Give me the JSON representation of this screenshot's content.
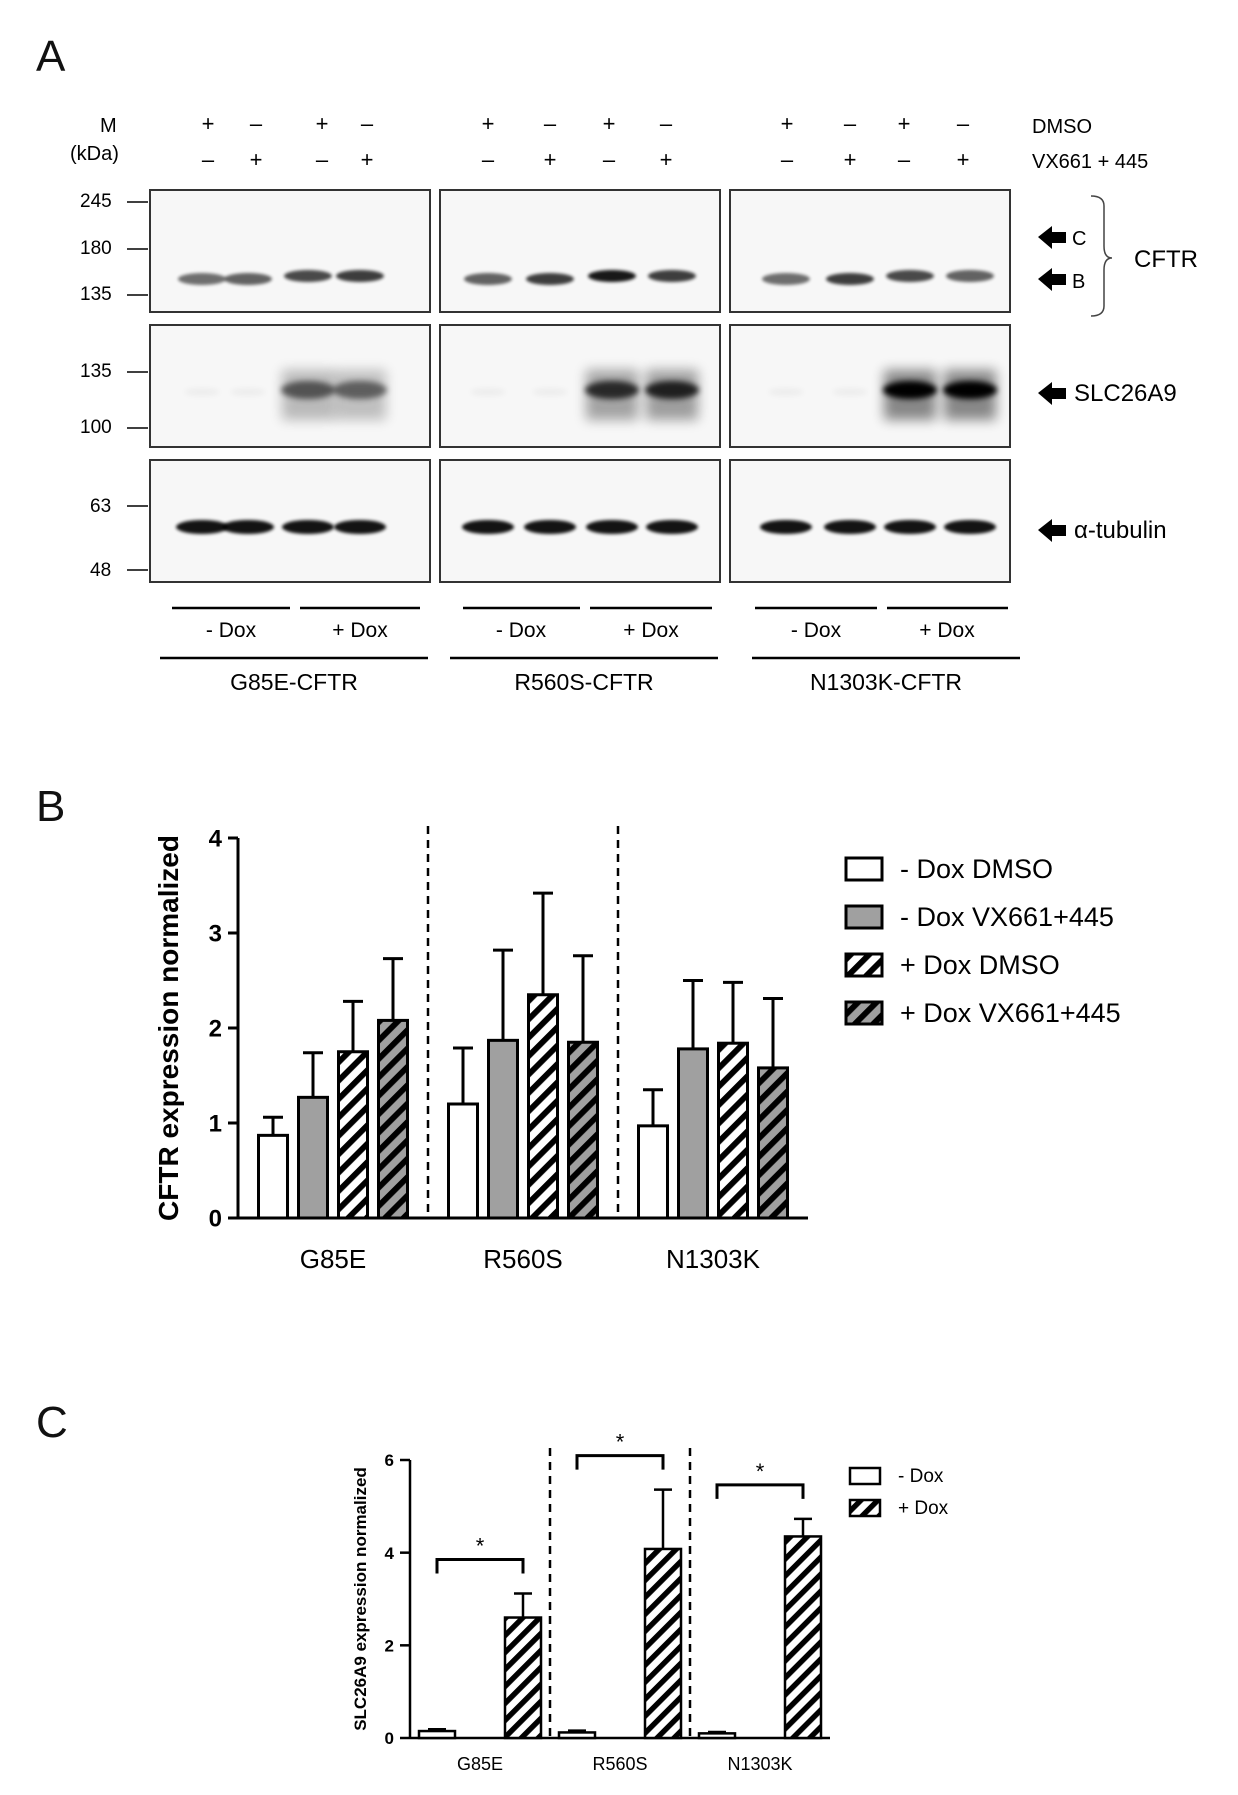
{
  "panels": {
    "a": "A",
    "b": "B",
    "c": "C"
  },
  "blot": {
    "marker_label": "M",
    "kda_label": "(kDa)",
    "row_labels": [
      "DMSO",
      "VX661 + 445"
    ],
    "dmso_signs": [
      "+",
      "–",
      "+",
      "–",
      "+",
      "–",
      "+",
      "–",
      "+",
      "–",
      "+",
      "–"
    ],
    "vx_signs": [
      "–",
      "+",
      "–",
      "+",
      "–",
      "+",
      "–",
      "+",
      "–",
      "+",
      "–",
      "+"
    ],
    "cftr_markers": [
      "245",
      "180",
      "135"
    ],
    "slc_markers": [
      "135",
      "100"
    ],
    "tub_markers": [
      "63",
      "48"
    ],
    "arrow_c": "C",
    "arrow_b": "B",
    "cftr_label": "CFTR",
    "slc_label": "SLC26A9",
    "tub_label": "α-tubulin",
    "dox_labels": [
      "- Dox",
      "+ Dox",
      "- Dox",
      "+ Dox",
      "- Dox",
      "+ Dox"
    ],
    "lines": [
      "G85E-CFTR",
      "R560S-CFTR",
      "N1303K-CFTR"
    ]
  },
  "chart_data": [
    {
      "type": "bar",
      "title": "",
      "ylabel": "CFTR expression normalized",
      "xlabel": "",
      "categories": [
        "G85E",
        "R560S",
        "N1303K"
      ],
      "ylim": [
        0,
        4
      ],
      "yticks": [
        "0",
        "1",
        "2",
        "3",
        "4"
      ],
      "legend_position": "right",
      "series": [
        {
          "name": "- Dox DMSO",
          "values": [
            0.87,
            1.2,
            0.97
          ],
          "errors": [
            0.19,
            0.59,
            0.38
          ],
          "fill": "#ffffff",
          "pattern": "none"
        },
        {
          "name": "- Dox VX661+445",
          "values": [
            1.27,
            1.87,
            1.78
          ],
          "errors": [
            0.47,
            0.95,
            0.72
          ],
          "fill": "#a0a0a0",
          "pattern": "none"
        },
        {
          "name": "+ Dox DMSO",
          "values": [
            1.75,
            2.35,
            1.84
          ],
          "errors": [
            0.53,
            1.07,
            0.64
          ],
          "fill": "#ffffff",
          "pattern": "hatch"
        },
        {
          "name": "+ Dox VX661+445",
          "values": [
            2.08,
            1.85,
            1.58
          ],
          "errors": [
            0.65,
            0.91,
            0.73
          ],
          "fill": "#a0a0a0",
          "pattern": "hatch"
        }
      ]
    },
    {
      "type": "bar",
      "title": "",
      "ylabel": "SLC26A9 expression normalized",
      "xlabel": "",
      "categories": [
        "G85E",
        "R560S",
        "N1303K"
      ],
      "ylim": [
        0,
        6
      ],
      "yticks": [
        "0",
        "2",
        "4",
        "6"
      ],
      "legend_position": "right",
      "significance": [
        "*",
        "*",
        "*"
      ],
      "series": [
        {
          "name": "- Dox",
          "values": [
            0.15,
            0.12,
            0.1
          ],
          "errors": [
            0.04,
            0.04,
            0.03
          ],
          "fill": "#ffffff",
          "pattern": "none"
        },
        {
          "name": "+ Dox",
          "values": [
            2.6,
            4.08,
            4.35
          ],
          "errors": [
            0.52,
            1.28,
            0.38
          ],
          "fill": "#ffffff",
          "pattern": "hatch"
        }
      ]
    }
  ]
}
